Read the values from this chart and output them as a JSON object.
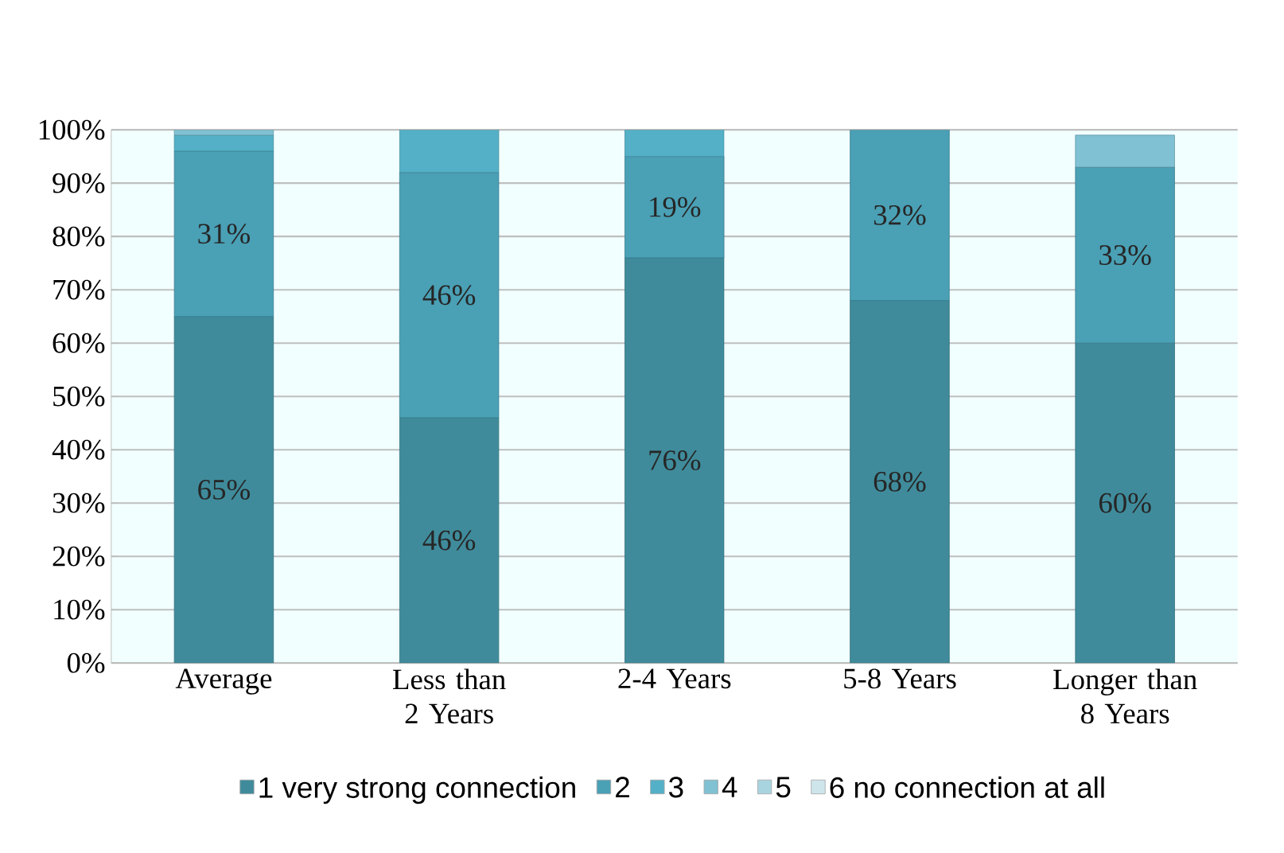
{
  "chart_data": {
    "type": "bar",
    "stacked": true,
    "categories": [
      "Average",
      "Less than 2 Years",
      "2-4 Years",
      "5-8 Years",
      "Longer than 8 Years"
    ],
    "series": [
      {
        "name": "1 very strong connection",
        "color": "#3f8b9b",
        "values": [
          65,
          46,
          76,
          68,
          60
        ],
        "value_labels": [
          "65%",
          "46%",
          "76%",
          "68%",
          "60%"
        ]
      },
      {
        "name": "2",
        "color": "#4aa0b5",
        "values": [
          31,
          46,
          19,
          32,
          33
        ],
        "value_labels": [
          "31%",
          "46%",
          "19%",
          "32%",
          "33%"
        ]
      },
      {
        "name": "3",
        "color": "#53b0c6",
        "values": [
          3,
          8,
          5,
          null,
          null
        ]
      },
      {
        "name": "4",
        "color": "#80c1d3",
        "values": [
          1,
          null,
          null,
          null,
          6
        ]
      },
      {
        "name": "5",
        "color": "#a8d4df",
        "values": [
          null,
          null,
          null,
          null,
          null
        ]
      },
      {
        "name": "6 no connection at all",
        "color": "#cfe5ec",
        "values": [
          null,
          null,
          null,
          null,
          null
        ]
      }
    ],
    "ylim": [
      0,
      100
    ],
    "yticks": [
      {
        "value": 0,
        "label": "0%"
      },
      {
        "value": 10,
        "label": "10%"
      },
      {
        "value": 20,
        "label": "20%"
      },
      {
        "value": 30,
        "label": "30%"
      },
      {
        "value": 40,
        "label": "40%"
      },
      {
        "value": 50,
        "label": "50%"
      },
      {
        "value": 60,
        "label": "60%"
      },
      {
        "value": 70,
        "label": "70%"
      },
      {
        "value": 80,
        "label": "80%"
      },
      {
        "value": 90,
        "label": "90%"
      },
      {
        "value": 100,
        "label": "100%"
      }
    ],
    "grid": "y",
    "legend": "bottom"
  }
}
